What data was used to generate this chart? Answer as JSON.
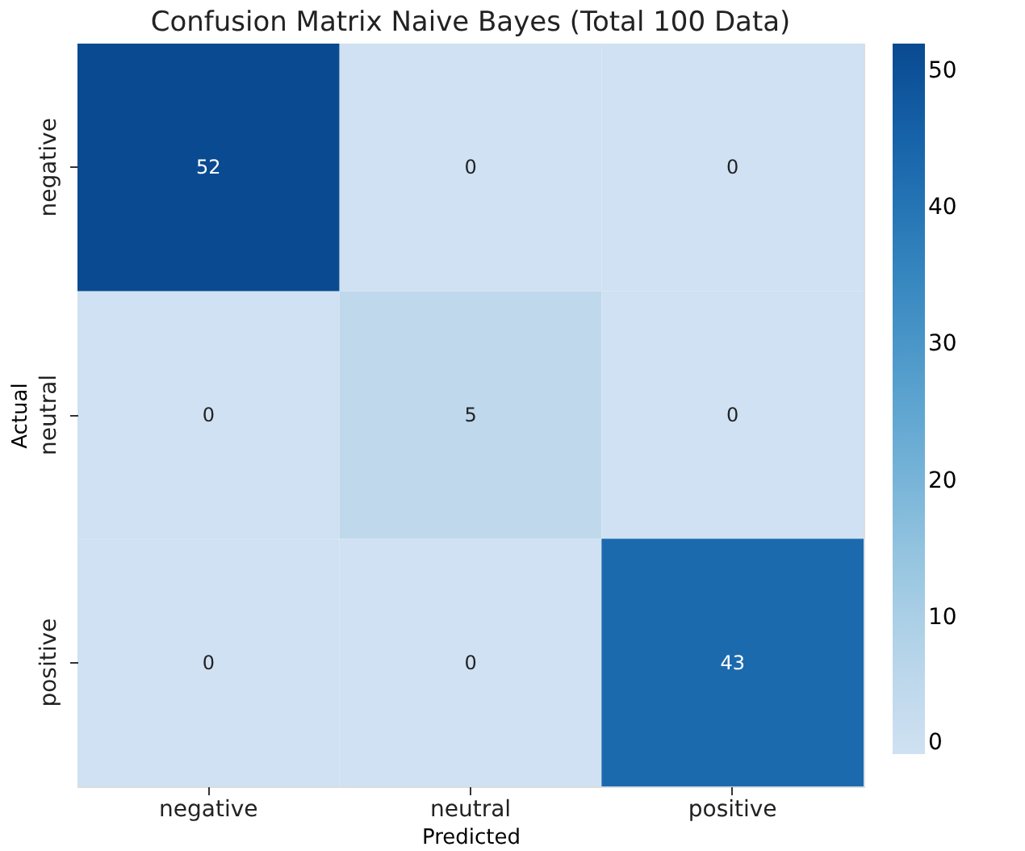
{
  "chart_data": {
    "type": "heatmap",
    "title": "Confusion Matrix Naive Bayes (Total 100 Data)",
    "xlabel": "Predicted",
    "ylabel": "Actual",
    "categories": [
      "negative",
      "neutral",
      "positive"
    ],
    "y_categories": [
      "negative",
      "neutral",
      "positive"
    ],
    "cells": [
      [
        52,
        0,
        0
      ],
      [
        0,
        5,
        0
      ],
      [
        0,
        0,
        43
      ]
    ],
    "data_labels": true,
    "clim": [
      0,
      52
    ],
    "cticks": [
      0,
      10,
      20,
      30,
      40,
      50
    ]
  }
}
